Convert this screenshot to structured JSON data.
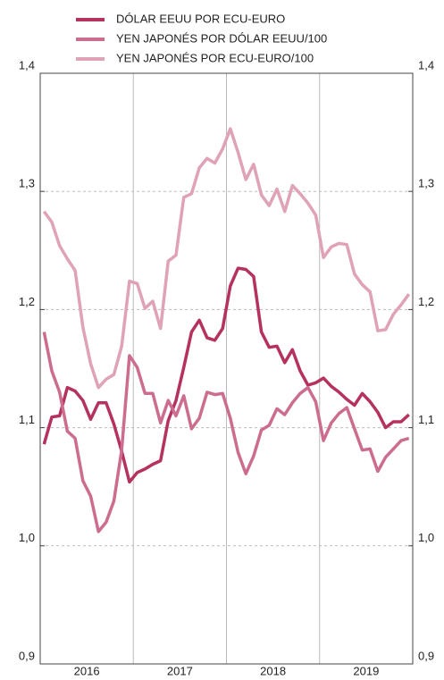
{
  "chart_data": {
    "type": "line",
    "categories": [
      null,
      null,
      null,
      null,
      null,
      null,
      null,
      null,
      null,
      null,
      null,
      null,
      null,
      null,
      null,
      null,
      null,
      null,
      null,
      null,
      null,
      null,
      null,
      null,
      null,
      null,
      null,
      null,
      null,
      null,
      null,
      null,
      null,
      null,
      null,
      null,
      null,
      null,
      null,
      null,
      null,
      null,
      null,
      null,
      null,
      null,
      null,
      null
    ],
    "series": [
      {
        "name": "DÓLAR EEUU POR ECU-EURO",
        "color": "#b5325f",
        "values": [
          1.086,
          1.109,
          1.11,
          1.134,
          1.131,
          1.123,
          1.107,
          1.121,
          1.121,
          1.103,
          1.08,
          1.054,
          1.062,
          1.065,
          1.069,
          1.072,
          1.106,
          1.123,
          1.151,
          1.181,
          1.191,
          1.176,
          1.174,
          1.184,
          1.22,
          1.235,
          1.234,
          1.228,
          1.181,
          1.168,
          1.169,
          1.155,
          1.166,
          1.148,
          1.136,
          1.138,
          1.142,
          1.135,
          1.13,
          1.124,
          1.119,
          1.129,
          1.122,
          1.113,
          1.1,
          1.105,
          1.105,
          1.111
        ]
      },
      {
        "name": "YEN JAPONÉS POR DÓLAR EEUU/100",
        "color": "#cc6d8f",
        "values": [
          1.181,
          1.148,
          1.13,
          1.097,
          1.091,
          1.055,
          1.042,
          1.012,
          1.02,
          1.038,
          1.081,
          1.161,
          1.151,
          1.129,
          1.129,
          1.104,
          1.123,
          1.11,
          1.127,
          1.099,
          1.108,
          1.13,
          1.128,
          1.129,
          1.108,
          1.079,
          1.061,
          1.076,
          1.098,
          1.102,
          1.116,
          1.111,
          1.121,
          1.129,
          1.134,
          1.122,
          1.089,
          1.104,
          1.112,
          1.117,
          1.099,
          1.081,
          1.082,
          1.063,
          1.075,
          1.082,
          1.089,
          1.091
        ]
      },
      {
        "name": "YEN JAPONÉS POR ECU-EURO/100",
        "color": "#dfa2b7",
        "values": [
          1.283,
          1.274,
          1.254,
          1.243,
          1.233,
          1.185,
          1.154,
          1.134,
          1.141,
          1.145,
          1.169,
          1.224,
          1.222,
          1.201,
          1.207,
          1.184,
          1.241,
          1.246,
          1.295,
          1.298,
          1.32,
          1.328,
          1.324,
          1.336,
          1.353,
          1.333,
          1.31,
          1.323,
          1.297,
          1.288,
          1.302,
          1.283,
          1.305,
          1.298,
          1.29,
          1.28,
          1.244,
          1.253,
          1.256,
          1.255,
          1.23,
          1.221,
          1.215,
          1.182,
          1.183,
          1.196,
          1.204,
          1.213
        ]
      }
    ],
    "xlim": [
      2016,
      2020
    ],
    "xticks": [
      {
        "value": 2016.5,
        "label": "2016"
      },
      {
        "value": 2017.5,
        "label": "2017"
      },
      {
        "value": 2018.5,
        "label": "2018"
      },
      {
        "value": 2019.5,
        "label": "2019"
      }
    ],
    "xgrid": [
      2017,
      2018,
      2019
    ],
    "ylim": [
      0.9,
      1.4
    ],
    "yticks": [
      {
        "value": 0.9,
        "label": "0,9"
      },
      {
        "value": 1.0,
        "label": "1,0"
      },
      {
        "value": 1.1,
        "label": "1,1"
      },
      {
        "value": 1.2,
        "label": "1,2"
      },
      {
        "value": 1.3,
        "label": "1,3"
      },
      {
        "value": 1.4,
        "label": "1,4"
      }
    ],
    "y2lim": [
      0.9,
      1.4
    ],
    "y2ticks": [
      {
        "value": 0.9,
        "label": "0,9"
      },
      {
        "value": 1.0,
        "label": "1,0"
      },
      {
        "value": 1.1,
        "label": "1,1"
      },
      {
        "value": 1.2,
        "label": "1,2"
      },
      {
        "value": 1.3,
        "label": "1,3"
      },
      {
        "value": 1.4,
        "label": "1,4"
      }
    ],
    "grid": true
  }
}
